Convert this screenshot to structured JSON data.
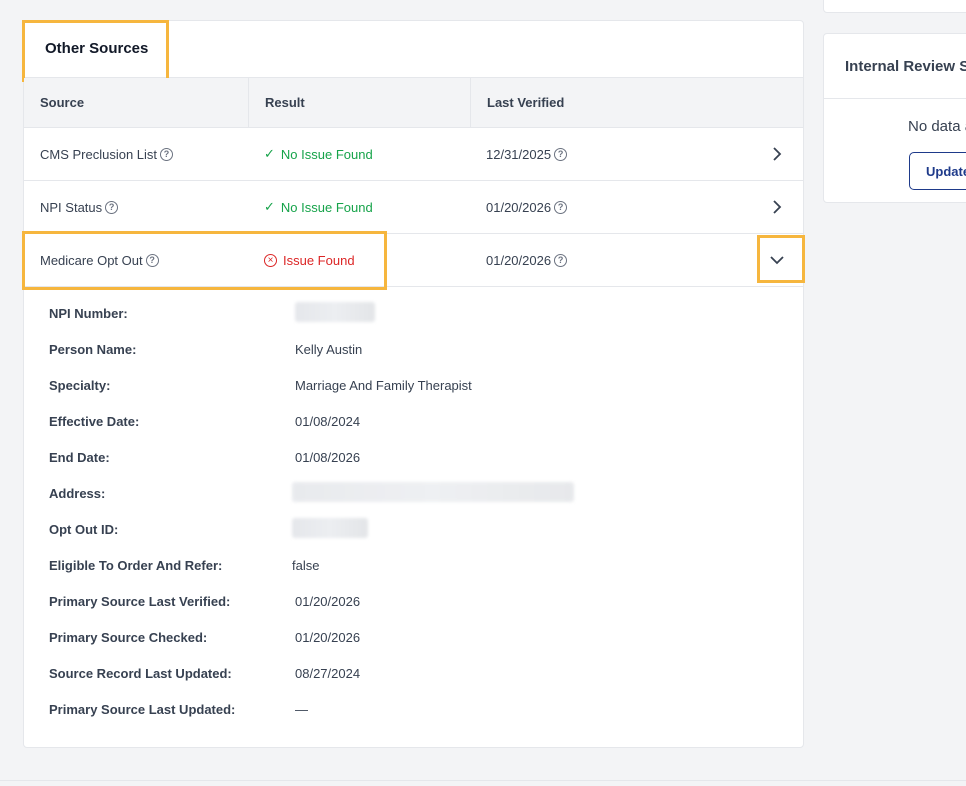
{
  "other_sources": {
    "title": "Other Sources",
    "columns": [
      "Source",
      "Result",
      "Last Verified"
    ],
    "rows": [
      {
        "source": "CMS Preclusion List",
        "result": "No Issue Found",
        "status": "ok",
        "last_verified": "12/31/2025",
        "expanded": false
      },
      {
        "source": "NPI Status",
        "result": "No Issue Found",
        "status": "ok",
        "last_verified": "01/20/2026",
        "expanded": false
      },
      {
        "source": "Medicare Opt Out",
        "result": "Issue Found",
        "status": "issue",
        "last_verified": "01/20/2026",
        "expanded": true
      }
    ],
    "details": [
      {
        "label": "NPI Number:",
        "value": ""
      },
      {
        "label": "Person Name:",
        "value": "Kelly Austin"
      },
      {
        "label": "Specialty:",
        "value": "Marriage And Family Therapist"
      },
      {
        "label": "Effective Date:",
        "value": "01/08/2024"
      },
      {
        "label": "End Date:",
        "value": "01/08/2026"
      },
      {
        "label": "Address:",
        "value": ""
      },
      {
        "label": "Opt Out ID:",
        "value": ""
      },
      {
        "label": "Eligible To Order And Refer:",
        "value": "false"
      },
      {
        "label": "Primary Source Last Verified:",
        "value": "01/20/2026"
      },
      {
        "label": "Primary Source Checked:",
        "value": "01/20/2026"
      },
      {
        "label": "Source Record Last Updated:",
        "value": "08/27/2024"
      },
      {
        "label": "Primary Source Last Updated:",
        "value": "—"
      }
    ]
  },
  "internal_review": {
    "title": "Internal Review St",
    "empty_text": "No data a",
    "button_label": "Update"
  },
  "colors": {
    "highlight": "#f6b63e",
    "ok": "#16a34a",
    "issue": "#dc2626",
    "button": "#1e3a8a"
  },
  "icons": {
    "ok": "check-icon",
    "issue": "x-circle-icon",
    "help": "help-circle-icon",
    "collapsed": "chevron-right-icon",
    "expanded": "chevron-down-icon"
  }
}
